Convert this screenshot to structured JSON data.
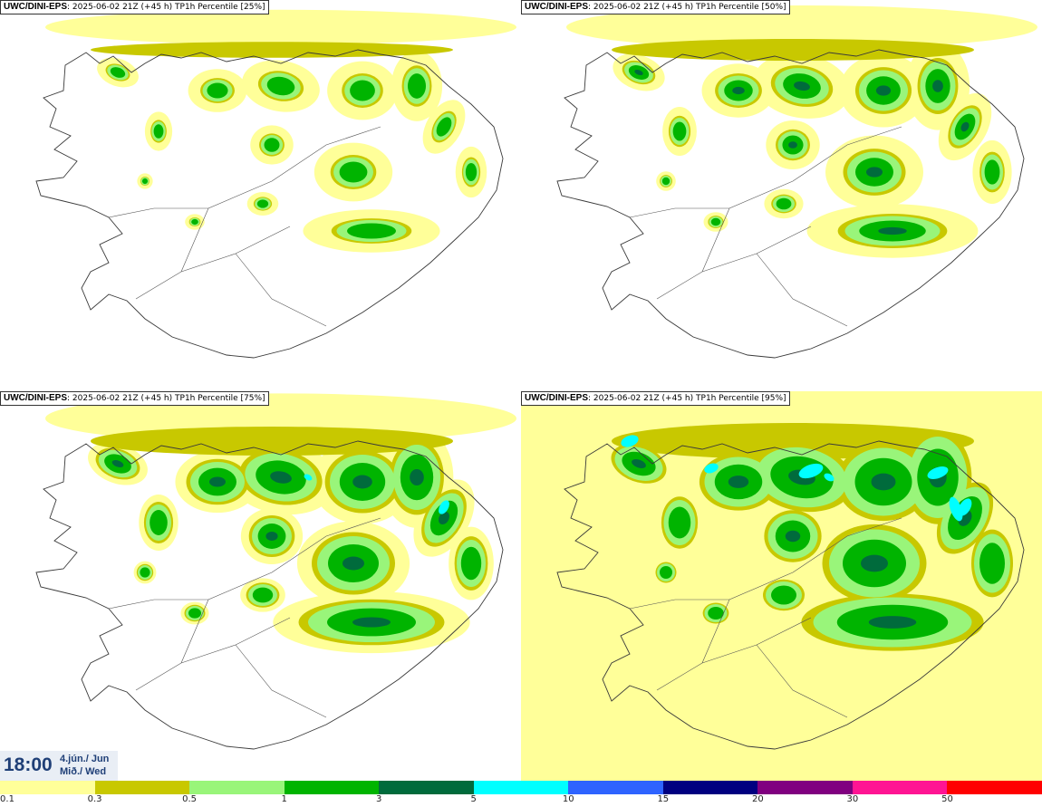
{
  "panels": [
    {
      "model": "UWC/DINI-EPS",
      "run": "2025-06-02 21Z (+45 h)",
      "product": "TP1h Percentile [25%]",
      "percentile": 25
    },
    {
      "model": "UWC/DINI-EPS",
      "run": "2025-06-02 21Z (+45 h)",
      "product": "TP1h Percentile [50%]",
      "percentile": 50
    },
    {
      "model": "UWC/DINI-EPS",
      "run": "2025-06-02 21Z (+45 h)",
      "product": "TP1h Percentile [75%]",
      "percentile": 75
    },
    {
      "model": "UWC/DINI-EPS",
      "run": "2025-06-02 21Z (+45 h)",
      "product": "TP1h Percentile [95%]",
      "percentile": 95
    }
  ],
  "valid_time": {
    "time": "18:00",
    "date_line1": "4.jún./ Jun",
    "date_line2": "Mið./ Wed"
  },
  "legend": {
    "labels": [
      "0.1",
      "0.3",
      "0.5",
      "1",
      "3",
      "5",
      "10",
      "15",
      "20",
      "30",
      "50"
    ],
    "colors": [
      "#ffff99",
      "#c8c800",
      "#99f57a",
      "#00b400",
      "#006b3c",
      "#00ffff",
      "#2e63ff",
      "#000080",
      "#800080",
      "#ff1493",
      "#ff0000"
    ]
  }
}
